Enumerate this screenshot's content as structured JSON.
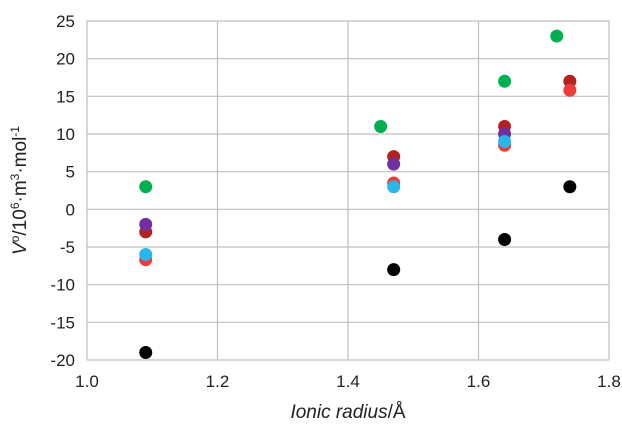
{
  "chart_data": {
    "type": "scatter",
    "title": "",
    "xlabel": {
      "italic": "Ionic radius",
      "rest": "/Å"
    },
    "ylabel": {
      "italic": "V",
      "sup1": "o",
      "mid": "/10",
      "sup2": "6",
      "tail": "·m",
      "sup3": "3",
      "tail2": "·mol",
      "sup4": "-1"
    },
    "xlim": [
      1.0,
      1.8
    ],
    "ylim": [
      -20,
      25
    ],
    "xticks": [
      "1.0",
      "1.2",
      "1.4",
      "1.6",
      "1.8"
    ],
    "yticks": [
      "-20",
      "-15",
      "-10",
      "-5",
      "0",
      "5",
      "10",
      "15",
      "20",
      "25"
    ],
    "grid": true,
    "series": [
      {
        "color": "#00b050",
        "points": [
          [
            1.09,
            3.0
          ],
          [
            1.45,
            11.0
          ],
          [
            1.64,
            17.0
          ],
          [
            1.72,
            23.0
          ]
        ]
      },
      {
        "color": "#b22222",
        "points": [
          [
            1.09,
            -3.0
          ],
          [
            1.47,
            7.0
          ],
          [
            1.64,
            11.0
          ],
          [
            1.74,
            17.0
          ]
        ]
      },
      {
        "color": "#7030a0",
        "points": [
          [
            1.09,
            -2.0
          ],
          [
            1.47,
            6.0
          ],
          [
            1.64,
            10.0
          ]
        ]
      },
      {
        "color": "#ee3b3b",
        "points": [
          [
            1.09,
            -6.7
          ],
          [
            1.47,
            3.5
          ],
          [
            1.64,
            8.5
          ],
          [
            1.74,
            15.8
          ]
        ]
      },
      {
        "color": "#29b6e8",
        "points": [
          [
            1.09,
            -6.0
          ],
          [
            1.47,
            3.0
          ],
          [
            1.64,
            9.0
          ]
        ]
      },
      {
        "color": "#000000",
        "points": [
          [
            1.09,
            -19.0
          ],
          [
            1.47,
            -8.0
          ],
          [
            1.64,
            -4.0
          ],
          [
            1.74,
            3.0
          ]
        ]
      }
    ]
  }
}
